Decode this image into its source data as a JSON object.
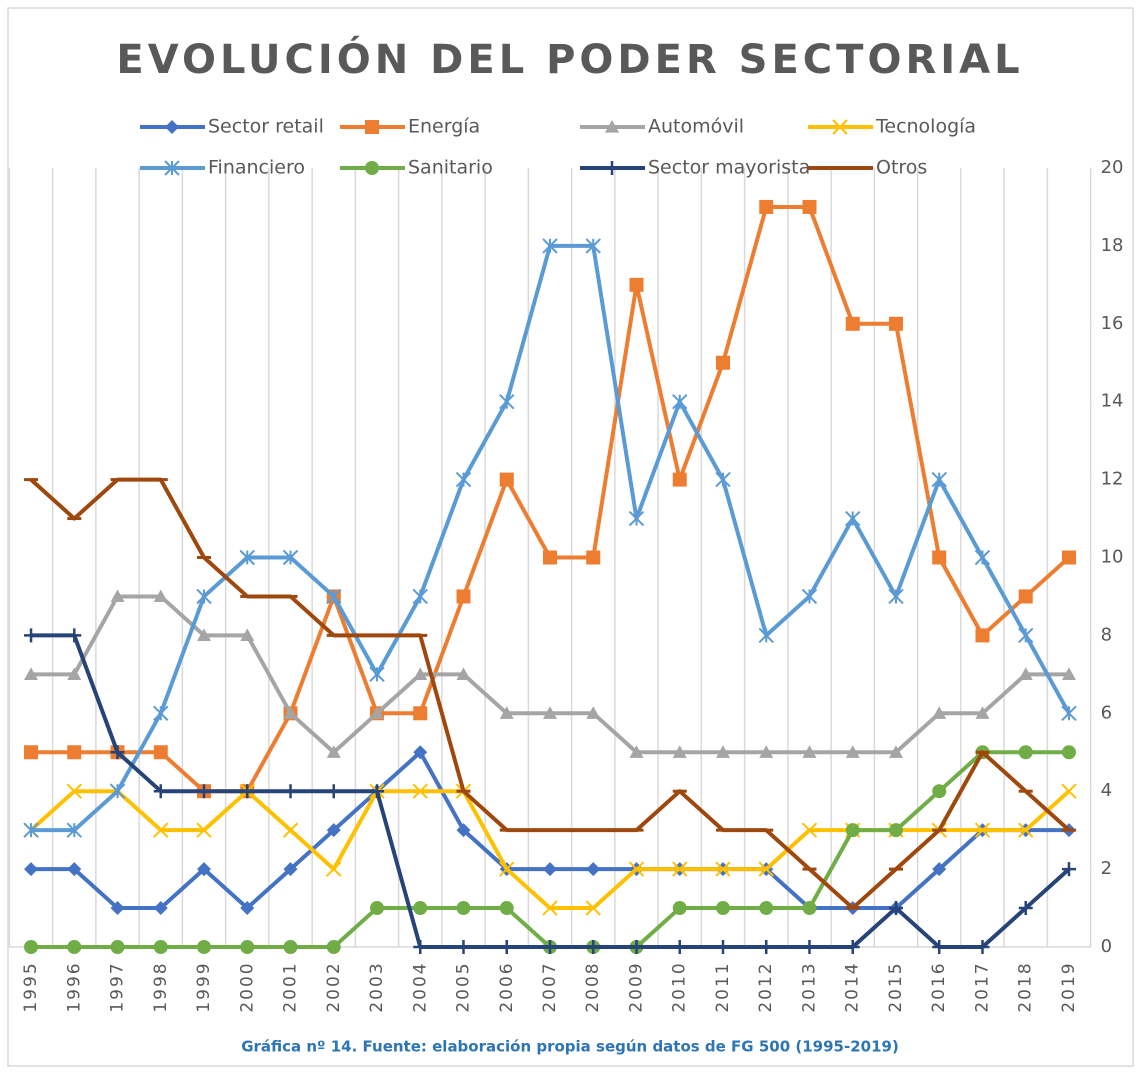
{
  "chart_data": {
    "type": "line",
    "title": "EVOLUCIÓN DEL PODER SECTORIAL",
    "caption": "Gráfica nº 14. Fuente: elaboración propia según datos de FG 500 (1995-2019)",
    "categories": [
      "1995",
      "1996",
      "1997",
      "1998",
      "1999",
      "2000",
      "2001",
      "2002",
      "2003",
      "2004",
      "2005",
      "2006",
      "2007",
      "2008",
      "2009",
      "2010",
      "2011",
      "2012",
      "2013",
      "2014",
      "2015",
      "2016",
      "2017",
      "2018",
      "2019"
    ],
    "ylim": [
      0,
      20
    ],
    "yticks": [
      0,
      2,
      4,
      6,
      8,
      10,
      12,
      14,
      16,
      18,
      20
    ],
    "y_axis_side": "right",
    "category_separators": true,
    "series": [
      {
        "name": "Sector retail",
        "color": "#4472c4",
        "marker": "diamond",
        "values": [
          2,
          2,
          1,
          1,
          2,
          1,
          2,
          3,
          4,
          5,
          3,
          2,
          2,
          2,
          2,
          2,
          2,
          2,
          1,
          1,
          1,
          2,
          3,
          3,
          3
        ]
      },
      {
        "name": "Energía",
        "color": "#ed7d31",
        "marker": "square",
        "values": [
          5,
          5,
          5,
          5,
          4,
          4,
          6,
          9,
          6,
          6,
          9,
          12,
          10,
          10,
          17,
          12,
          15,
          19,
          19,
          16,
          16,
          10,
          8,
          9,
          10
        ]
      },
      {
        "name": "Automóvil",
        "color": "#a5a5a5",
        "marker": "triangle",
        "values": [
          7,
          7,
          9,
          9,
          8,
          8,
          6,
          5,
          6,
          7,
          7,
          6,
          6,
          6,
          5,
          5,
          5,
          5,
          5,
          5,
          5,
          6,
          6,
          7,
          7
        ]
      },
      {
        "name": "Tecnología",
        "color": "#ffc000",
        "marker": "x",
        "values": [
          3,
          4,
          4,
          3,
          3,
          4,
          3,
          2,
          4,
          4,
          4,
          2,
          1,
          1,
          2,
          2,
          2,
          2,
          3,
          3,
          3,
          3,
          3,
          3,
          4
        ]
      },
      {
        "name": "Financiero",
        "color": "#5b9bd5",
        "marker": "star",
        "values": [
          3,
          3,
          4,
          6,
          9,
          10,
          10,
          9,
          7,
          9,
          12,
          14,
          18,
          18,
          11,
          14,
          12,
          8,
          9,
          11,
          9,
          12,
          10,
          8,
          6
        ]
      },
      {
        "name": "Sanitario",
        "color": "#70ad47",
        "marker": "circle",
        "values": [
          0,
          0,
          0,
          0,
          0,
          0,
          0,
          0,
          1,
          1,
          1,
          1,
          0,
          0,
          0,
          1,
          1,
          1,
          1,
          3,
          3,
          4,
          5,
          5,
          5
        ]
      },
      {
        "name": "Sector mayorista",
        "color": "#264478",
        "marker": "plus",
        "values": [
          8,
          8,
          5,
          4,
          4,
          4,
          4,
          4,
          4,
          0,
          0,
          0,
          0,
          0,
          0,
          0,
          0,
          0,
          0,
          0,
          1,
          0,
          0,
          1,
          2
        ]
      },
      {
        "name": "Otros",
        "color": "#9e480e",
        "marker": "dash",
        "values": [
          12,
          11,
          12,
          12,
          10,
          9,
          9,
          8,
          8,
          8,
          4,
          3,
          3,
          3,
          3,
          4,
          3,
          3,
          2,
          1,
          2,
          3,
          5,
          4,
          3
        ]
      }
    ]
  }
}
